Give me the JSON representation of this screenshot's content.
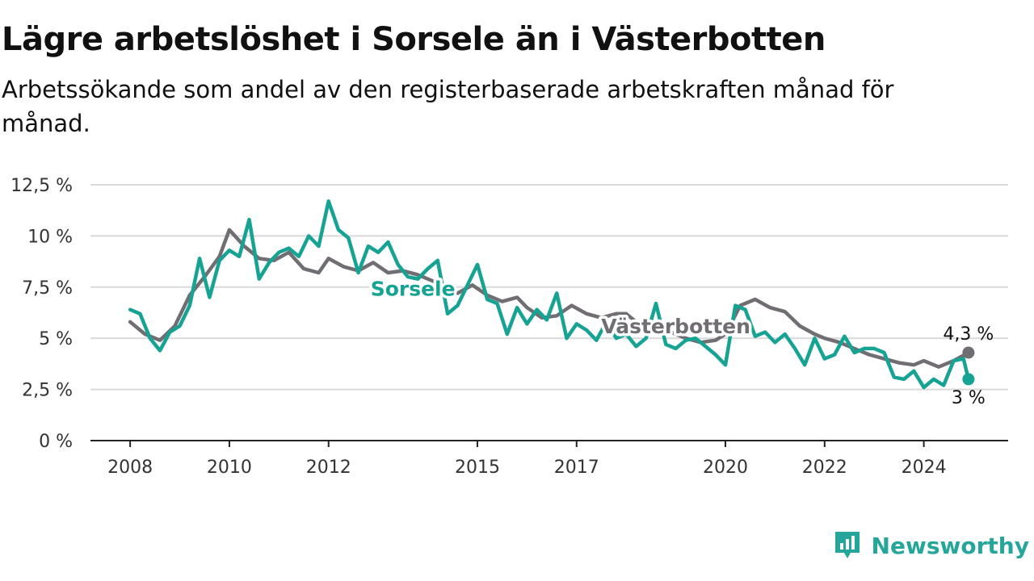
{
  "title": "Lägre arbetslöshet i Sorsele än i Västerbotten",
  "subtitle": "Arbetssökande som andel av den registerbaserade arbetskraften månad för månad.",
  "brand": {
    "name": "Newsworthy",
    "color": "#26a69a"
  },
  "colors": {
    "sorsele": "#16a394",
    "vasterbotten": "#716e73",
    "grid": "#d9d9d9",
    "axis": "#222222"
  },
  "chart_data": {
    "type": "line",
    "title": "Lägre arbetslöshet i Sorsele än i Västerbotten",
    "subtitle": "Arbetssökande som andel av den registerbaserade arbetskraften månad för månad.",
    "y_ticks": [
      "0 %",
      "2,5 %",
      "5 %",
      "7,5 %",
      "10 %",
      "12,5 %"
    ],
    "y_tick_values": [
      0,
      2.5,
      5,
      7.5,
      10,
      12.5
    ],
    "ylim": [
      0,
      12.5
    ],
    "x_ticks": [
      "2008",
      "2010",
      "2012",
      "2015",
      "2017",
      "2020",
      "2022",
      "2024"
    ],
    "x_tick_values": [
      2008,
      2010,
      2012,
      2015,
      2017,
      2020,
      2022,
      2024
    ],
    "xlim": [
      2007.2,
      2025.7
    ],
    "grid": true,
    "series": [
      {
        "name": "Västerbotten",
        "color": "#716e73",
        "end_label": "4,3 %",
        "x": [
          2008.0,
          2008.3,
          2008.6,
          2008.9,
          2009.2,
          2009.5,
          2009.8,
          2010.0,
          2010.3,
          2010.6,
          2010.9,
          2011.2,
          2011.5,
          2011.8,
          2012.0,
          2012.3,
          2012.6,
          2012.9,
          2013.2,
          2013.5,
          2013.8,
          2014.0,
          2014.3,
          2014.6,
          2014.9,
          2015.2,
          2015.5,
          2015.8,
          2016.0,
          2016.3,
          2016.6,
          2016.9,
          2017.2,
          2017.5,
          2017.8,
          2018.0,
          2018.3,
          2018.6,
          2018.9,
          2019.2,
          2019.5,
          2019.8,
          2020.0,
          2020.3,
          2020.6,
          2020.9,
          2021.2,
          2021.5,
          2021.8,
          2022.0,
          2022.3,
          2022.6,
          2022.9,
          2023.2,
          2023.5,
          2023.8,
          2024.0,
          2024.3,
          2024.6,
          2024.9
        ],
        "values": [
          5.8,
          5.2,
          4.9,
          5.6,
          7.1,
          8.0,
          9.0,
          10.3,
          9.5,
          8.9,
          8.8,
          9.2,
          8.4,
          8.2,
          8.9,
          8.5,
          8.3,
          8.7,
          8.2,
          8.3,
          8.1,
          7.9,
          7.6,
          7.2,
          7.6,
          7.1,
          6.8,
          7.0,
          6.5,
          6.0,
          6.1,
          6.6,
          6.2,
          6.0,
          6.2,
          6.2,
          5.6,
          5.5,
          5.3,
          5.0,
          4.8,
          4.9,
          5.2,
          6.6,
          6.9,
          6.5,
          6.3,
          5.6,
          5.2,
          5.0,
          4.8,
          4.5,
          4.2,
          4.0,
          3.8,
          3.7,
          3.9,
          3.6,
          3.9,
          4.3
        ]
      },
      {
        "name": "Sorsele",
        "color": "#16a394",
        "end_label": "3 %",
        "x": [
          2008.0,
          2008.2,
          2008.4,
          2008.6,
          2008.8,
          2009.0,
          2009.2,
          2009.4,
          2009.6,
          2009.8,
          2010.0,
          2010.2,
          2010.4,
          2010.6,
          2010.8,
          2011.0,
          2011.2,
          2011.4,
          2011.6,
          2011.8,
          2012.0,
          2012.2,
          2012.4,
          2012.6,
          2012.8,
          2013.0,
          2013.2,
          2013.4,
          2013.6,
          2013.8,
          2014.0,
          2014.2,
          2014.4,
          2014.6,
          2014.8,
          2015.0,
          2015.2,
          2015.4,
          2015.6,
          2015.8,
          2016.0,
          2016.2,
          2016.4,
          2016.6,
          2016.8,
          2017.0,
          2017.2,
          2017.4,
          2017.6,
          2017.8,
          2018.0,
          2018.2,
          2018.4,
          2018.6,
          2018.8,
          2019.0,
          2019.2,
          2019.4,
          2019.6,
          2019.8,
          2020.0,
          2020.2,
          2020.4,
          2020.6,
          2020.8,
          2021.0,
          2021.2,
          2021.4,
          2021.6,
          2021.8,
          2022.0,
          2022.2,
          2022.4,
          2022.6,
          2022.8,
          2023.0,
          2023.2,
          2023.4,
          2023.6,
          2023.8,
          2024.0,
          2024.2,
          2024.4,
          2024.6,
          2024.8,
          2024.9
        ],
        "values": [
          6.4,
          6.2,
          5.0,
          4.4,
          5.3,
          5.6,
          6.6,
          8.9,
          7.0,
          8.8,
          9.3,
          9.0,
          10.8,
          7.9,
          8.7,
          9.2,
          9.4,
          9.0,
          10.0,
          9.5,
          11.7,
          10.3,
          9.9,
          8.2,
          9.5,
          9.2,
          9.7,
          8.6,
          8.0,
          7.9,
          8.4,
          8.8,
          6.2,
          6.6,
          7.6,
          8.6,
          6.9,
          6.7,
          5.2,
          6.5,
          5.7,
          6.4,
          5.9,
          7.2,
          5.0,
          5.7,
          5.4,
          4.9,
          5.8,
          5.0,
          5.2,
          4.6,
          5.0,
          6.7,
          4.7,
          4.5,
          4.9,
          5.0,
          4.6,
          4.2,
          3.7,
          6.6,
          6.4,
          5.1,
          5.3,
          4.8,
          5.2,
          4.5,
          3.7,
          5.0,
          4.0,
          4.2,
          5.1,
          4.3,
          4.5,
          4.5,
          4.3,
          3.1,
          3.0,
          3.4,
          2.6,
          3.0,
          2.7,
          3.9,
          4.0,
          3.0
        ]
      }
    ],
    "annotations": [
      "Sorsele",
      "Västerbotten"
    ]
  }
}
